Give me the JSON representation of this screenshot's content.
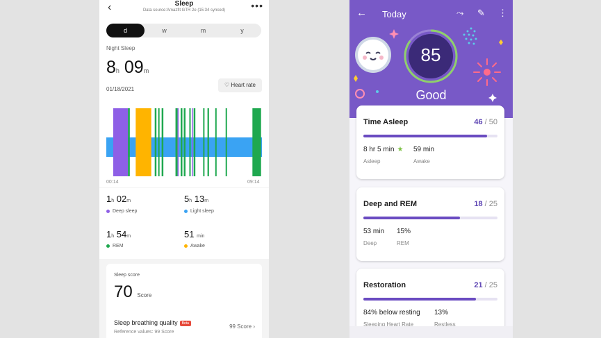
{
  "left": {
    "title": "Sleep",
    "subtitle": "Data source:Amazfit GTR 2e (15:34 synced)",
    "tabs": [
      "d",
      "w",
      "m",
      "y"
    ],
    "active_tab": "d",
    "night_label": "Night Sleep",
    "total": {
      "hours": "8",
      "h_unit": "h",
      "minutes": "09",
      "m_unit": "m"
    },
    "date": "01/18/2021",
    "heart_rate_button": "Heart rate",
    "chart_data": {
      "type": "bar",
      "title": "",
      "xlabel": "",
      "ylabel": "",
      "x_start": "00:14",
      "x_end": "09:14",
      "stage_colors": {
        "deep": "#8e5fe6",
        "light": "#3aa3f3",
        "rem": "#1fa84f",
        "awake": "#ffb400"
      },
      "segments_hours": [
        {
          "stage": "light",
          "start": 0.0,
          "end": 9.0
        },
        {
          "stage": "deep",
          "start": 0.4,
          "end": 1.25
        },
        {
          "stage": "rem",
          "start": 1.25,
          "end": 1.36
        },
        {
          "stage": "awake",
          "start": 1.7,
          "end": 2.6
        },
        {
          "stage": "rem",
          "start": 2.8,
          "end": 2.9
        },
        {
          "stage": "rem",
          "start": 3.0,
          "end": 3.08
        },
        {
          "stage": "rem",
          "start": 3.2,
          "end": 3.3
        },
        {
          "stage": "rem",
          "start": 4.0,
          "end": 4.12
        },
        {
          "stage": "deep",
          "start": 4.12,
          "end": 4.18
        },
        {
          "stage": "rem",
          "start": 4.3,
          "end": 4.4
        },
        {
          "stage": "rem",
          "start": 4.48,
          "end": 4.58
        },
        {
          "stage": "rem",
          "start": 4.8,
          "end": 4.88
        },
        {
          "stage": "deep",
          "start": 4.95,
          "end": 5.0
        },
        {
          "stage": "rem",
          "start": 5.05,
          "end": 5.15
        },
        {
          "stage": "rem",
          "start": 5.6,
          "end": 5.68
        },
        {
          "stage": "rem",
          "start": 5.85,
          "end": 5.94
        },
        {
          "stage": "rem",
          "start": 6.3,
          "end": 6.38
        },
        {
          "stage": "rem",
          "start": 6.9,
          "end": 6.98
        },
        {
          "stage": "rem",
          "start": 8.45,
          "end": 8.95
        }
      ]
    },
    "stats": [
      {
        "h": "1",
        "h_unit": "h",
        "m": "02",
        "m_unit": "m",
        "label": "Deep sleep",
        "color": "#8e5fe6"
      },
      {
        "h": "5",
        "h_unit": "h",
        "m": "13",
        "m_unit": "m",
        "label": "Light sleep",
        "color": "#3aa3f3"
      },
      {
        "h": "1",
        "h_unit": "h",
        "m": "54",
        "m_unit": "m",
        "label": "REM",
        "color": "#1fa84f"
      },
      {
        "h": "",
        "h_unit": "",
        "m": "51",
        "m_unit": "min",
        "label": "Awake",
        "color": "#ffb400"
      }
    ],
    "score_card": {
      "title": "Sleep score",
      "value": "70",
      "unit": "Score",
      "breathing_title": "Sleep breathing quality",
      "beta": "Beta",
      "breathing_score": "99 Score",
      "reference": "Reference values: 99 Score"
    }
  },
  "right": {
    "header_title": "Today",
    "score": "85",
    "score_fraction": 0.85,
    "rating": "Good",
    "cards": [
      {
        "title": "Time Asleep",
        "score": "46",
        "max": "/ 50",
        "fraction": 0.92,
        "values": [
          {
            "value": "8 hr 5 min",
            "label": "Asleep",
            "star": true
          },
          {
            "value": "59 min",
            "label": "Awake",
            "star": false
          }
        ]
      },
      {
        "title": "Deep and REM",
        "score": "18",
        "max": "/ 25",
        "fraction": 0.72,
        "values": [
          {
            "value": "53 min",
            "label": "Deep",
            "star": false
          },
          {
            "value": "15%",
            "label": "REM",
            "star": false
          }
        ]
      },
      {
        "title": "Restoration",
        "score": "21",
        "max": "/ 25",
        "fraction": 0.84,
        "values": [
          {
            "value": "84% below resting",
            "label": "Sleeping Heart Rate",
            "star": false
          },
          {
            "value": "13%",
            "label": "Restless",
            "star": false
          }
        ]
      }
    ]
  }
}
